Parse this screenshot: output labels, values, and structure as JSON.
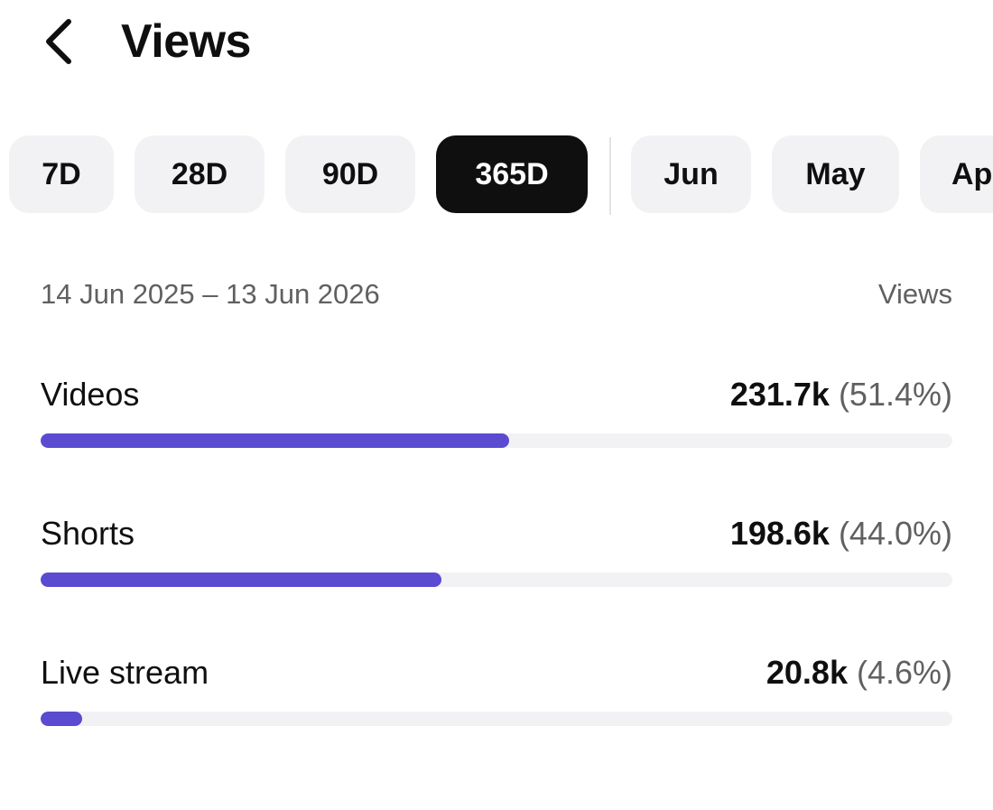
{
  "header": {
    "title": "Views",
    "back_icon": "chevron-left-icon"
  },
  "chips": {
    "items": [
      {
        "label": "7D",
        "selected": false
      },
      {
        "label": "28D",
        "selected": false
      },
      {
        "label": "90D",
        "selected": false
      },
      {
        "label": "365D",
        "selected": true
      },
      {
        "label": "Jun",
        "selected": false
      },
      {
        "label": "May",
        "selected": false
      },
      {
        "label": "Ap",
        "selected": false
      }
    ]
  },
  "range": {
    "text": "14 Jun 2025 – 13 Jun 2026",
    "column_label": "Views"
  },
  "metrics": [
    {
      "label": "Videos",
      "value": "231.7k",
      "percent_text": "(51.4%)",
      "percent": 51.4
    },
    {
      "label": "Shorts",
      "value": "198.6k",
      "percent_text": "(44.0%)",
      "percent": 44.0
    },
    {
      "label": "Live stream",
      "value": "20.8k",
      "percent_text": "(4.6%)",
      "percent": 4.6
    }
  ],
  "colors": {
    "accent": "#5b4bd0",
    "chip_bg": "#f2f2f4",
    "chip_selected_bg": "#0f0f0f"
  }
}
